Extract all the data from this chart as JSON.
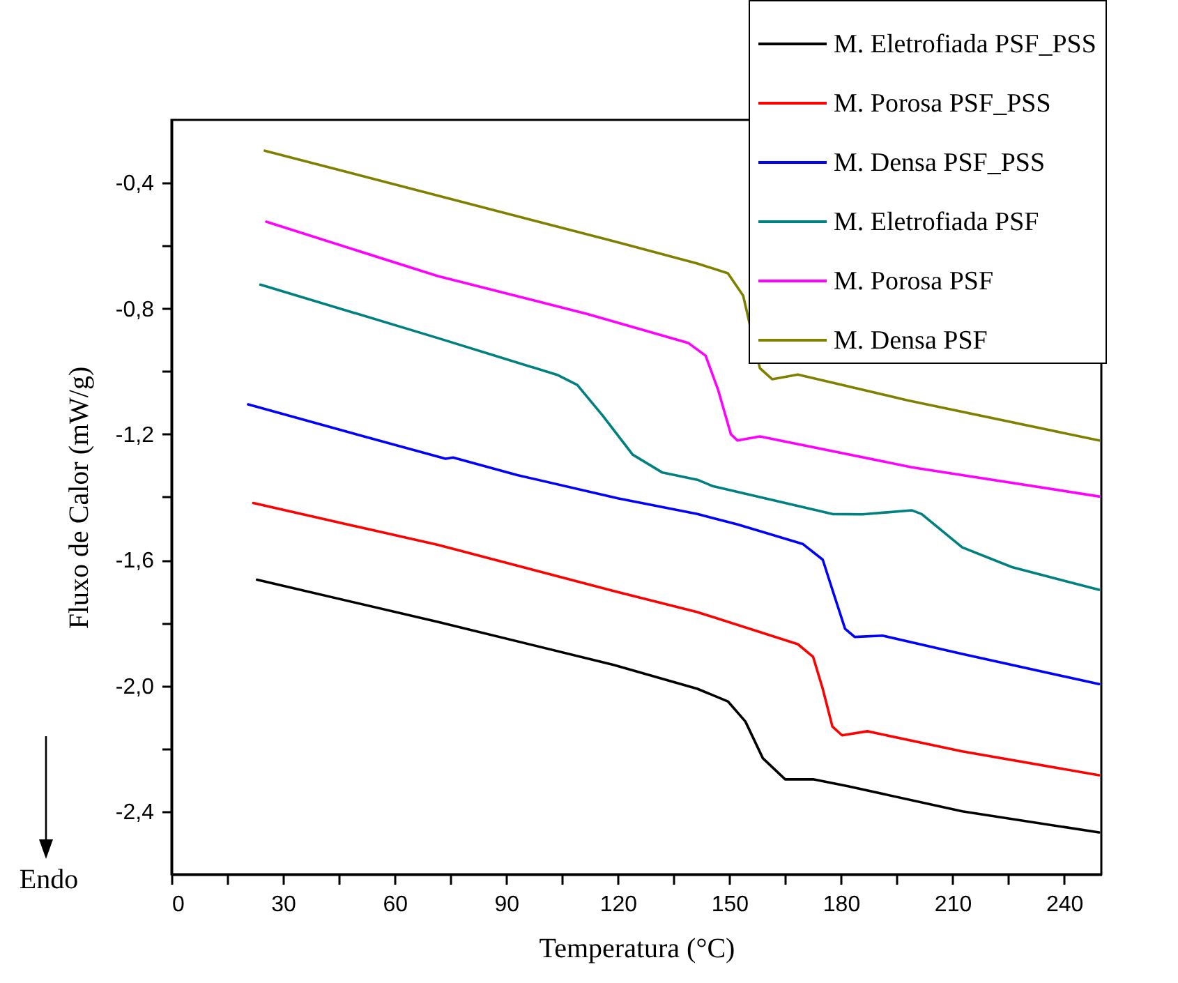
{
  "chart_data": {
    "type": "line",
    "xlabel": "Temperatura (°C)",
    "ylabel": "Fluxo de Calor (mW/g)",
    "annotations": [
      "Endo"
    ],
    "xlim": [
      0,
      250
    ],
    "xticks": [
      0,
      {
        "value": 15,
        "label": null
      },
      30,
      {
        "value": 45,
        "label": null
      },
      60,
      {
        "value": 75,
        "label": null
      },
      90,
      {
        "value": 105,
        "label": null
      },
      120,
      {
        "value": 135,
        "label": null
      },
      150,
      {
        "value": 165,
        "label": null
      },
      180,
      {
        "value": 195,
        "label": null
      },
      210,
      {
        "value": 225,
        "label": null
      },
      240
    ],
    "ylim": [
      -2.6,
      -0.2
    ],
    "yticks": [
      {
        "value": -0.4,
        "label": "-0,4"
      },
      {
        "value": -0.6,
        "label": null
      },
      {
        "value": -0.8,
        "label": "-0,8"
      },
      {
        "value": -1.0,
        "label": null
      },
      {
        "value": -1.2,
        "label": "-1,2"
      },
      {
        "value": -1.4,
        "label": null
      },
      {
        "value": -1.6,
        "label": "-1,6"
      },
      {
        "value": -1.8,
        "label": null
      },
      {
        "value": -2.0,
        "label": "-2,0"
      },
      {
        "value": -2.2,
        "label": null
      },
      {
        "value": -2.4,
        "label": "-2,4"
      }
    ],
    "grid": false,
    "legend": "top right",
    "line_style": "solid",
    "series": [
      {
        "name": "M. Eletrofiada PSF_PSS",
        "color": "#000000",
        "x": [
          23,
          71.6,
          118.9,
          141.4,
          149.6,
          154.3,
          159,
          165,
          172.5,
          181.9,
          212.6,
          249.4
        ],
        "values": [
          -1.663,
          -1.797,
          -1.934,
          -2.01,
          -2.05,
          -2.114,
          -2.231,
          -2.298,
          -2.298,
          -2.32,
          -2.4,
          -2.467
        ]
      },
      {
        "name": "M. Porosa PSF_PSS",
        "color": "#ff0000",
        "x": [
          22,
          71.6,
          118.9,
          141.4,
          168.4,
          172.5,
          175.1,
          177.7,
          180.3,
          187.1,
          212.6,
          249.4
        ],
        "values": [
          -1.419,
          -1.552,
          -1.699,
          -1.766,
          -1.868,
          -1.908,
          -2.01,
          -2.13,
          -2.158,
          -2.145,
          -2.209,
          -2.285
        ]
      },
      {
        "name": "M. Densa PSF_PSS",
        "color": "#0000ff",
        "x": [
          20.6,
          45,
          73.7,
          75.7,
          93,
          120,
          141.4,
          152.2,
          169.7,
          175.1,
          177.7,
          181.1,
          183.7,
          191.2,
          212.6,
          249.4
        ],
        "values": [
          -1.105,
          -1.185,
          -1.278,
          -1.274,
          -1.33,
          -1.404,
          -1.454,
          -1.487,
          -1.549,
          -1.599,
          -1.695,
          -1.819,
          -1.845,
          -1.841,
          -1.899,
          -1.995
        ]
      },
      {
        "name": "M. Eletrofiada PSF",
        "color": "#008080",
        "x": [
          23.9,
          71.6,
          103.9,
          109.1,
          115.9,
          124,
          132,
          141.4,
          145.5,
          177.7,
          185.8,
          199,
          201.7,
          212.6,
          226,
          249.4
        ],
        "values": [
          -0.724,
          -0.894,
          -1.012,
          -1.043,
          -1.14,
          -1.265,
          -1.322,
          -1.345,
          -1.365,
          -1.454,
          -1.455,
          -1.442,
          -1.454,
          -1.56,
          -1.623,
          -1.695
        ]
      },
      {
        "name": "M. Porosa PSF",
        "color": "#ff00ff",
        "x": [
          25.5,
          71.6,
          111.7,
          139,
          143.6,
          147,
          150.4,
          152.2,
          158.2,
          199,
          249.4
        ],
        "values": [
          -0.524,
          -0.697,
          -0.817,
          -0.91,
          -0.95,
          -1.06,
          -1.2,
          -1.22,
          -1.207,
          -1.305,
          -1.398
        ]
      },
      {
        "name": "M. Densa PSF",
        "color": "#808000",
        "x": [
          25.1,
          118.9,
          141.4,
          149.6,
          153.7,
          158.2,
          161.5,
          168.4,
          197.9,
          249.4
        ],
        "values": [
          -0.298,
          -0.586,
          -0.657,
          -0.688,
          -0.759,
          -0.99,
          -1.025,
          -1.01,
          -1.092,
          -1.22
        ]
      }
    ]
  }
}
